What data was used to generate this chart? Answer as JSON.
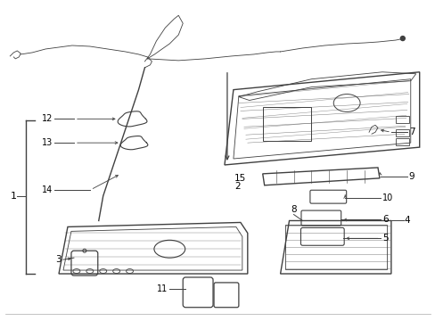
{
  "bg_color": "#ffffff",
  "line_color": "#404040",
  "text_color": "#000000",
  "lw": 1.0,
  "thin_lw": 0.6
}
